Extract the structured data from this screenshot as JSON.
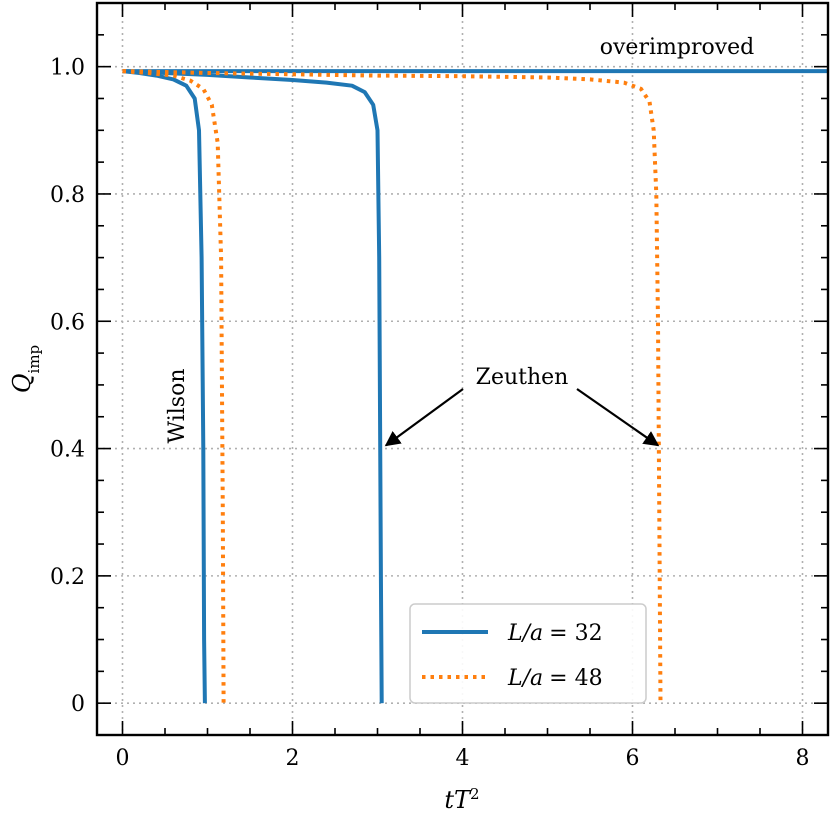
{
  "chart_data": {
    "type": "line",
    "xlabel": "tT",
    "xlabel_sup": "2",
    "ylabel": "Q",
    "ylabel_sub": "imp",
    "xlim": [
      -0.3,
      8.3
    ],
    "ylim": [
      -0.05,
      1.1
    ],
    "xticks": [
      0,
      2,
      4,
      6,
      8
    ],
    "xtick_labels": [
      "0",
      "2",
      "4",
      "6",
      "8"
    ],
    "yticks": [
      0,
      0.2,
      0.4,
      0.6,
      0.8,
      1.0
    ],
    "ytick_labels": [
      "0",
      "0.2",
      "0.4",
      "0.6",
      "0.8",
      "1.0"
    ],
    "grid": true,
    "legend_position": "bottom-right",
    "annotations": {
      "overimproved": "overimproved",
      "wilson": "Wilson",
      "zeuthen": "Zeuthen"
    },
    "zeuthen_arrow_targets": [
      {
        "x": 3.1,
        "y": 0.405
      },
      {
        "x": 6.3,
        "y": 0.405
      }
    ],
    "series": [
      {
        "name": "L/a = 32",
        "label_lhs": "L/a",
        "label_rhs": "= 32",
        "color": "#1f77b4",
        "style": "solid",
        "curves": [
          {
            "group": "Wilson",
            "x": [
              0,
              0.2,
              0.4,
              0.6,
              0.75,
              0.85,
              0.9,
              0.93,
              0.95,
              0.96,
              0.97
            ],
            "y": [
              0.993,
              0.99,
              0.986,
              0.98,
              0.97,
              0.95,
              0.9,
              0.7,
              0.4,
              0.1,
              0.0
            ]
          },
          {
            "group": "Zeuthen",
            "x": [
              0,
              0.5,
              1.0,
              1.5,
              2.0,
              2.4,
              2.7,
              2.85,
              2.95,
              3.0,
              3.02,
              3.04,
              3.05
            ],
            "y": [
              0.993,
              0.99,
              0.987,
              0.983,
              0.979,
              0.975,
              0.97,
              0.96,
              0.94,
              0.9,
              0.7,
              0.2,
              0.0
            ]
          },
          {
            "group": "overimproved",
            "x": [
              0,
              8.3
            ],
            "y": [
              0.993,
              0.993
            ]
          }
        ]
      },
      {
        "name": "L/a = 48",
        "label_lhs": "L/a",
        "label_rhs": "= 48",
        "color": "#ff7f0e",
        "style": "dotted",
        "curves": [
          {
            "group": "Wilson",
            "x": [
              0,
              0.3,
              0.6,
              0.8,
              0.95,
              1.05,
              1.12,
              1.16,
              1.18,
              1.19
            ],
            "y": [
              0.993,
              0.99,
              0.986,
              0.978,
              0.965,
              0.94,
              0.88,
              0.7,
              0.3,
              0.0
            ]
          },
          {
            "group": "Zeuthen",
            "x": [
              0,
              1,
              2,
              3,
              4,
              5,
              5.5,
              5.9,
              6.1,
              6.2,
              6.25,
              6.28,
              6.3,
              6.32,
              6.33
            ],
            "y": [
              0.993,
              0.99,
              0.988,
              0.986,
              0.985,
              0.983,
              0.98,
              0.975,
              0.965,
              0.945,
              0.9,
              0.8,
              0.6,
              0.2,
              0.0
            ]
          }
        ]
      }
    ]
  }
}
